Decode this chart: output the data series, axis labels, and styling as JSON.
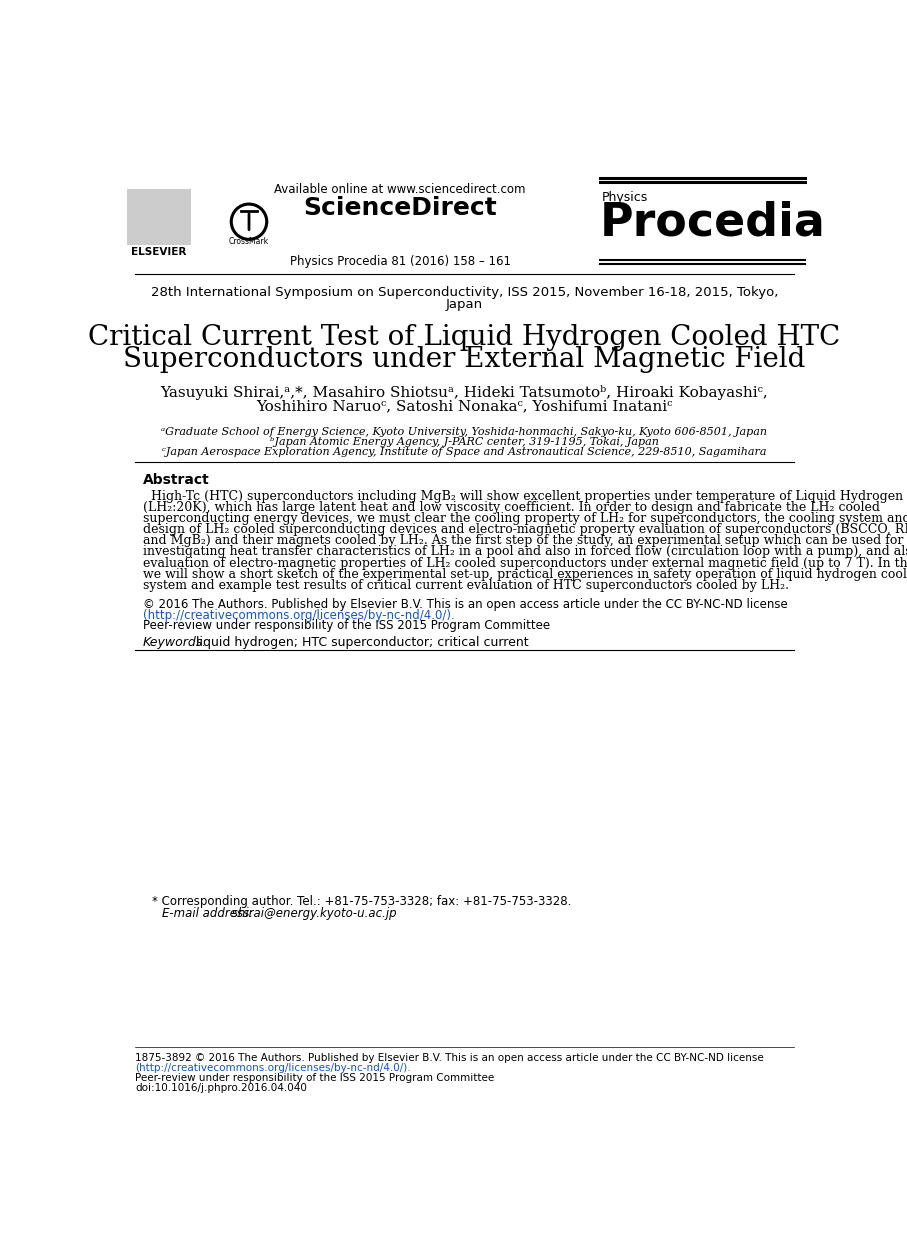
{
  "bg_color": "#ffffff",
  "header_available_online": "Available online at www.sciencedirect.com",
  "header_sciencedirect": "ScienceDirect",
  "header_journal_info": "Physics Procedia 81 (2016) 158 – 161",
  "header_physics": "Physics",
  "header_procedia": "Procedia",
  "conference_line": "28th International Symposium on Superconductivity, ISS 2015, November 16-18, 2015, Tokyo,",
  "conference_line2": "Japan",
  "paper_title_line1": "Critical Current Test of Liquid Hydrogen Cooled HTC",
  "paper_title_line2": "Superconductors under External Magnetic Field",
  "authors_line1": "Yasuyuki Shirai,ᵃ,*, Masahiro Shiotsuᵃ, Hideki Tatsumotoᵇ, Hiroaki Kobayashiᶜ,",
  "authors_line2": "Yoshihiro Naruoᶜ, Satoshi Nonakaᶜ, Yoshifumi Inataniᶜ",
  "affil_a": "ᵃGraduate School of Energy Science, Kyoto University, Yoshida-honmachi, Sakyo-ku, Kyoto 606-8501, Japan",
  "affil_b": "ᵇJapan Atomic Energy Agency, J-PARC center, 319-1195, Tokai, Japan",
  "affil_c": "ᶜJapan Aerospace Exploration Agency, Institute of Space and Astronautical Science, 229-8510, Sagamihara",
  "abstract_title": "Abstract",
  "abstract_body": "  High-Tc (HTC) superconductors including MgB₂ will show excellent properties under temperature of Liquid Hydrogen\n(LH₂:20K), which has large latent heat and low viscosity coefficient. In order to design and fabricate the LH₂ cooled\nsuperconducting energy devices, we must clear the cooling property of LH₂ for superconductors, the cooling system and safety\ndesign of LH₂ cooled superconducting devices and electro-magnetic property evaluation of superconductors (BSCCO, REBCO\nand MgB₂) and their magnets cooled by LH₂. As the first step of the study, an experimental setup which can be used for\ninvestigating heat transfer characteristics of LH₂ in a pool and also in forced flow (circulation loop with a pump), and also for\nevaluation of electro-magnetic properties of LH₂ cooled superconductors under external magnetic field (up to 7 T). In this paper,\nwe will show a short sketch of the experimental set-up, practical experiences in safety operation of liquid hydrogen cooling\nsystem and example test results of critical current evaluation of HTC superconductors cooled by LH₂.",
  "copyright_line1": "© 2016 The Authors. Published by Elsevier B.V. This is an open access article under the CC BY-NC-ND license",
  "copyright_line2": "(http://creativecommons.org/licenses/by-nc-nd/4.0/).",
  "copyright_line3": "Peer-review under responsibility of the ISS 2015 Program Committee",
  "keywords_label": "Keywords:",
  "keywords_text": " liquid hydrogen; HTC superconductor; critical current",
  "footer_corr": "* Corresponding author. Tel.: +81-75-753-3328; fax: +81-75-753-3328.",
  "footer_email_label": "E-mail address:",
  "footer_email_text": " shirai@energy.kyoto-u.ac.jp",
  "footer_bottom1": "1875-3892 © 2016 The Authors. Published by Elsevier B.V. This is an open access article under the CC BY-NC-ND license",
  "footer_bottom2": "(http://creativecommons.org/licenses/by-nc-nd/4.0/).",
  "footer_bottom3": "Peer-review under responsibility of the ISS 2015 Program Committee",
  "footer_doi": "doi:10.1016/j.phpro.2016.04.040",
  "line_color": "#000000",
  "link_color": "#1155CC"
}
